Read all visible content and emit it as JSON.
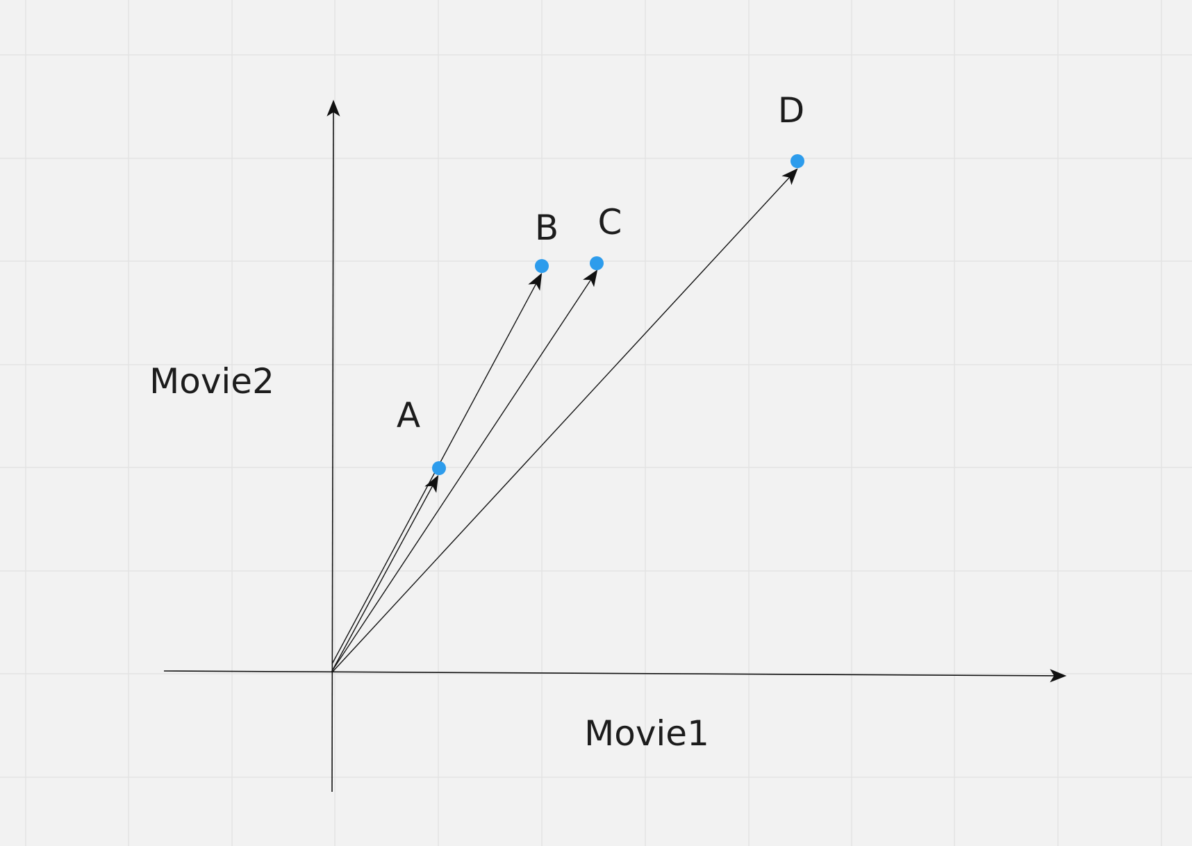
{
  "axes": {
    "x_label": "Movie1",
    "y_label": "Movie2"
  },
  "points": [
    {
      "id": "a",
      "label": "A"
    },
    {
      "id": "b",
      "label": "B"
    },
    {
      "id": "c",
      "label": "C"
    },
    {
      "id": "d",
      "label": "D"
    }
  ],
  "colors": {
    "background": "#f2f2f2",
    "grid": "#e3e3e3",
    "point": "#2d9cec",
    "line": "#111111"
  }
}
